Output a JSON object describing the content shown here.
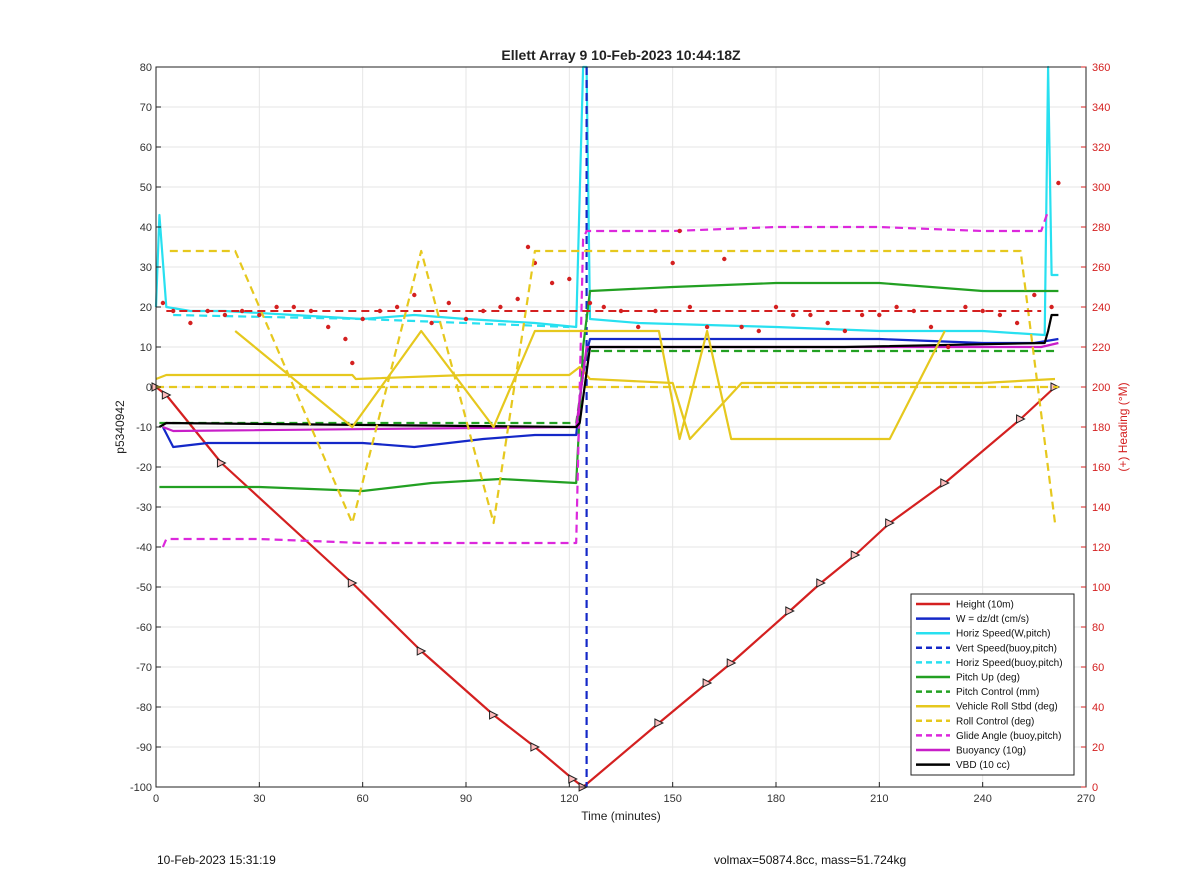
{
  "chart_data": {
    "type": "line",
    "title": "Ellett Array 9 10-Feb-2023 10:44:18Z",
    "xlabel": "Time (minutes)",
    "ylabel": "p5340942",
    "y2label": "(+) Heading (°M)",
    "xlim": [
      0,
      270
    ],
    "ylim": [
      -100,
      80
    ],
    "y2lim": [
      0,
      360
    ],
    "xticks": [
      "0",
      "30",
      "60",
      "90",
      "120",
      "150",
      "180",
      "210",
      "240",
      "270"
    ],
    "yticks": [
      "80",
      "70",
      "60",
      "50",
      "40",
      "30",
      "20",
      "10",
      "0",
      "-10",
      "-20",
      "-30",
      "-40",
      "-50",
      "-60",
      "-70",
      "-80",
      "-90",
      "-100"
    ],
    "y2ticks": [
      "360",
      "340",
      "320",
      "300",
      "280",
      "260",
      "240",
      "220",
      "200",
      "180",
      "160",
      "140",
      "120",
      "100",
      "80",
      "60",
      "40",
      "20",
      "0"
    ],
    "grid": true,
    "legend_position": "bottom-right",
    "series": [
      {
        "name": "Height (10m)",
        "color": "#d42020",
        "style": "solid",
        "axis": "left",
        "x": [
          0,
          3,
          19,
          57,
          77,
          98,
          110,
          121,
          124,
          146,
          160,
          167,
          184,
          193,
          203,
          213,
          229,
          251,
          261
        ],
        "y": [
          0,
          -2,
          -19,
          -49,
          -66,
          -82,
          -90,
          -98,
          -100,
          -84,
          -74,
          -69,
          -56,
          -49,
          -42,
          -34,
          -24,
          -8,
          0
        ]
      },
      {
        "name": "W = dz/dt (cm/s)",
        "color": "#1428c8",
        "style": "solid",
        "axis": "left",
        "x": [
          2,
          5,
          15,
          30,
          60,
          75,
          95,
          110,
          122,
          124,
          126,
          140,
          170,
          210,
          240,
          255,
          262
        ],
        "y": [
          -10,
          -15,
          -14,
          -14,
          -14,
          -15,
          -13,
          -12,
          -12,
          5,
          12,
          12,
          12,
          12,
          11,
          11,
          12
        ]
      },
      {
        "name": "Horiz Speed(W,pitch)",
        "color": "#28e0f0",
        "style": "solid",
        "axis": "left",
        "x": [
          0,
          1,
          3,
          10,
          20,
          40,
          60,
          75,
          90,
          110,
          122,
          124,
          125,
          126,
          140,
          180,
          210,
          240,
          258,
          259,
          260,
          262
        ],
        "y": [
          20,
          43,
          20,
          19,
          19,
          18,
          17,
          18,
          17,
          16,
          15,
          80,
          80,
          17,
          16,
          15,
          14,
          14,
          13,
          80,
          28,
          28
        ]
      },
      {
        "name": "Vert Speed(buoy,pitch)",
        "color": "#1428c8",
        "style": "dash",
        "axis": "left",
        "x": [
          125,
          125
        ],
        "y": [
          80,
          -100
        ]
      },
      {
        "name": "Horiz Speed(buoy,pitch)",
        "color": "#28e0f0",
        "style": "dash",
        "axis": "left",
        "x": [
          5,
          60,
          120
        ],
        "y": [
          18,
          17,
          15
        ]
      },
      {
        "name": "Pitch Up (deg)",
        "color": "#22a022",
        "style": "solid",
        "axis": "left",
        "x": [
          1,
          3,
          30,
          60,
          80,
          100,
          122,
          124,
          126,
          150,
          180,
          210,
          240,
          262
        ],
        "y": [
          -25,
          -25,
          -25,
          -26,
          -24,
          -23,
          -24,
          10,
          24,
          25,
          26,
          26,
          24,
          24
        ]
      },
      {
        "name": "Pitch Control (mm)",
        "color": "#22a022",
        "style": "dash",
        "axis": "left",
        "x": [
          1,
          60,
          122,
          125,
          200,
          261
        ],
        "y": [
          -9,
          -9,
          -9,
          9,
          9,
          9
        ]
      },
      {
        "name": "Vehicle Roll Stbd (deg)",
        "color": "#e6c81e",
        "style": "solid",
        "axis": "left",
        "x": [
          0,
          3,
          4,
          30,
          57,
          58,
          90,
          120,
          123,
          126,
          150,
          155,
          170,
          200,
          240,
          261
        ],
        "y": [
          2,
          3,
          3,
          3,
          3,
          2,
          3,
          3,
          5,
          2,
          1,
          -13,
          1,
          1,
          1,
          2
        ]
      },
      {
        "name": "Roll Control (deg)",
        "color": "#e6c81e",
        "style": "dash",
        "axis": "left",
        "x": [
          0,
          60,
          122,
          130,
          200,
          262
        ],
        "y": [
          0,
          0,
          0,
          0,
          0,
          0
        ]
      },
      {
        "name": "Glide Angle (buoy,pitch)",
        "color": "#dc28dc",
        "style": "dash",
        "axis": "left",
        "x": [
          2,
          3,
          30,
          60,
          90,
          122,
          124,
          125,
          126,
          150,
          180,
          210,
          240,
          257,
          259
        ],
        "y": [
          -40,
          -38,
          -38,
          -39,
          -39,
          -39,
          37,
          39,
          39,
          39,
          40,
          40,
          39,
          39,
          44
        ]
      },
      {
        "name": "Buoyancy (10g)",
        "color": "#c81ec8",
        "style": "solid",
        "axis": "left",
        "x": [
          2,
          5,
          122,
          125,
          200,
          257,
          262
        ],
        "y": [
          -10,
          -11,
          -10,
          10,
          10,
          10,
          11
        ]
      },
      {
        "name": "VBD (10 cc)",
        "color": "#000000",
        "style": "solid",
        "axis": "left",
        "x": [
          1,
          3,
          122,
          123,
          126,
          200,
          258,
          259,
          260,
          262
        ],
        "y": [
          -10,
          -9,
          -10,
          -9,
          10,
          10,
          11,
          14,
          18,
          18
        ]
      },
      {
        "name": "Heading",
        "color": "#d42020",
        "style": "dots",
        "axis": "right",
        "x": [
          2,
          5,
          10,
          15,
          20,
          25,
          30,
          35,
          40,
          45,
          50,
          55,
          57,
          60,
          65,
          70,
          75,
          80,
          85,
          90,
          95,
          100,
          105,
          108,
          110,
          115,
          120,
          126,
          130,
          135,
          140,
          145,
          150,
          152,
          155,
          160,
          165,
          170,
          175,
          180,
          185,
          190,
          195,
          200,
          205,
          210,
          215,
          220,
          225,
          230,
          235,
          240,
          245,
          250,
          255,
          260,
          262
        ],
        "y": [
          242,
          238,
          232,
          238,
          236,
          238,
          236,
          240,
          240,
          238,
          230,
          224,
          212,
          234,
          238,
          240,
          246,
          232,
          242,
          234,
          238,
          240,
          244,
          270,
          262,
          252,
          254,
          242,
          240,
          238,
          230,
          238,
          262,
          278,
          240,
          230,
          264,
          230,
          228,
          240,
          236,
          236,
          232,
          228,
          236,
          236,
          240,
          238,
          230,
          220,
          240,
          238,
          236,
          232,
          246,
          240,
          302
        ]
      },
      {
        "name": "Roll Control (deg) spikes",
        "color": "#e6c81e",
        "style": "dash",
        "axis": "left",
        "x": [
          4,
          23,
          57,
          77,
          98,
          110,
          124,
          146,
          160,
          167,
          184,
          193,
          203,
          213,
          229,
          251,
          261
        ],
        "y": [
          34,
          34,
          -34,
          34,
          -34,
          34,
          34,
          34,
          34,
          34,
          34,
          34,
          34,
          34,
          34,
          34,
          -34
        ]
      },
      {
        "name": "Vehicle Roll Stbd (deg) spikes",
        "color": "#e6c81e",
        "style": "solid",
        "axis": "left",
        "x": [
          23,
          57,
          77,
          98,
          110,
          146,
          152,
          160,
          167,
          190,
          203,
          213,
          229
        ],
        "y": [
          14,
          -10,
          14,
          -10,
          14,
          14,
          -13,
          14,
          -13,
          -13,
          -13,
          -13,
          14
        ]
      }
    ]
  },
  "footer": {
    "timestamp": "10-Feb-2023 15:31:19",
    "vehicle_info": "volmax=50874.8cc, mass=51.724kg"
  }
}
